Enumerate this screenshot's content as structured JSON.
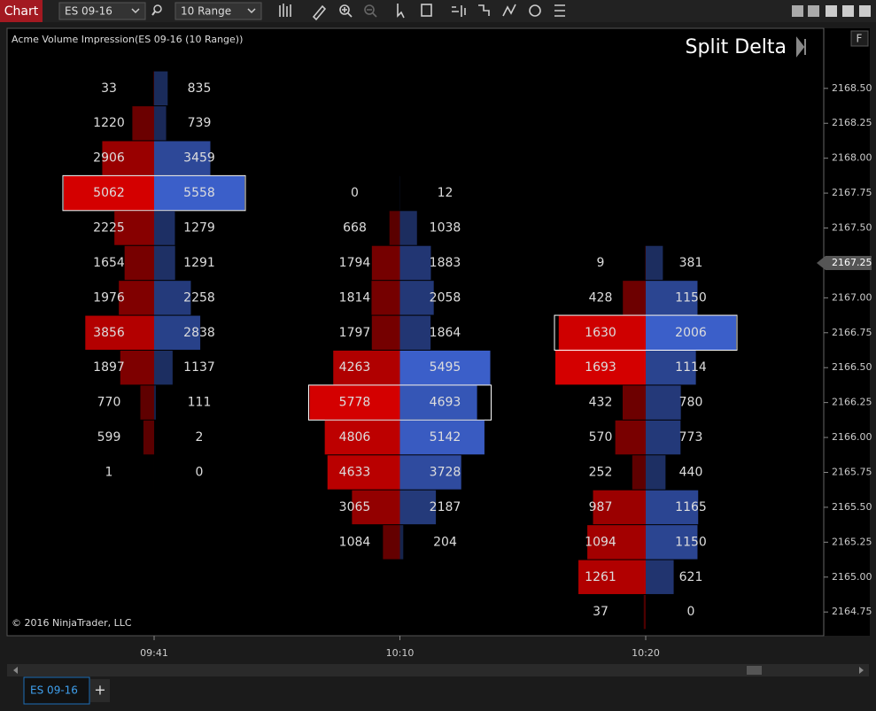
{
  "toolbar": {
    "chart_button": "Chart",
    "instrument": "ES 09-16",
    "interval": "10 Range"
  },
  "chart_data": {
    "type": "footprint",
    "title": "Acme Volume Impression(ES 09-16 (10 Range))",
    "mode_label": "Split Delta",
    "copyright": "© 2016 NinjaTrader, LLC",
    "panel_button": "F",
    "categories": [
      "09:41",
      "10:10",
      "10:20"
    ],
    "bars": [
      {
        "prices": [
          2168.5,
          2168.25,
          2168,
          2167.75,
          2167.5,
          2167.25,
          2167,
          2166.75,
          2166.5,
          2166.25,
          2166,
          2165.75
        ],
        "bid": [
          33,
          1220,
          2906,
          5062,
          2225,
          1654,
          1976,
          3856,
          1897,
          770,
          599,
          1
        ],
        "ask": [
          835,
          739,
          3459,
          5558,
          1279,
          1291,
          2258,
          2838,
          1137,
          111,
          2,
          0
        ]
      },
      {
        "prices": [
          2167.75,
          2167.5,
          2167.25,
          2167,
          2166.75,
          2166.5,
          2166.25,
          2166,
          2165.75,
          2165.5,
          2165.25
        ],
        "bid": [
          0,
          668,
          1794,
          1814,
          1797,
          4263,
          5778,
          4806,
          4633,
          3065,
          1084
        ],
        "ask": [
          12,
          1038,
          1883,
          2058,
          1864,
          5495,
          4693,
          5142,
          3728,
          2187,
          204
        ]
      },
      {
        "prices": [
          2167.25,
          2167,
          2166.75,
          2166.5,
          2166.25,
          2166,
          2165.75,
          2165.5,
          2165.25,
          2165,
          2164.75
        ],
        "bid": [
          9,
          428,
          1630,
          1693,
          432,
          570,
          252,
          987,
          1094,
          1261,
          37
        ],
        "ask": [
          381,
          1150,
          2006,
          1114,
          780,
          773,
          440,
          1165,
          1150,
          621,
          0
        ]
      }
    ],
    "bid_color": "#d40000",
    "ask_color": "#3b5fc9",
    "ylim": [
      2164.58,
      2168.93
    ],
    "yticks": [
      {
        "value": 2168.5,
        "label": "2168.50"
      },
      {
        "value": 2168.25,
        "label": "2168.25"
      },
      {
        "value": 2168,
        "label": "2168.00"
      },
      {
        "value": 2167.75,
        "label": "2167.75"
      },
      {
        "value": 2167.5,
        "label": "2167.50"
      },
      {
        "value": 2167.25,
        "label": "2167.25"
      },
      {
        "value": 2167,
        "label": "2167.00"
      },
      {
        "value": 2166.75,
        "label": "2166.75"
      },
      {
        "value": 2166.5,
        "label": "2166.50"
      },
      {
        "value": 2166.25,
        "label": "2166.25"
      },
      {
        "value": 2166,
        "label": "2166.00"
      },
      {
        "value": 2165.75,
        "label": "2165.75"
      },
      {
        "value": 2165.5,
        "label": "2165.50"
      },
      {
        "value": 2165.25,
        "label": "2165.25"
      },
      {
        "value": 2165,
        "label": "2165.00"
      },
      {
        "value": 2164.75,
        "label": "2164.75"
      }
    ],
    "current_price": {
      "value": 2167.25,
      "label": "2167.25"
    }
  },
  "tabs": {
    "active": "ES 09-16",
    "add": "+"
  }
}
